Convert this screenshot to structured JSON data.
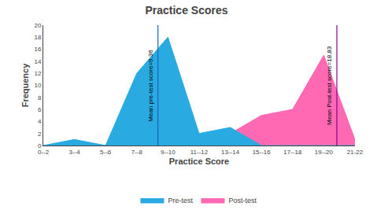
{
  "chart_data": {
    "type": "area",
    "title": "Practice Scores",
    "x_label": "Practice Score",
    "y_label": "Frequency",
    "categories": [
      "0--2",
      "3--4",
      "5--6",
      "7--8",
      "9--10",
      "11--12",
      "13--14",
      "15--16",
      "17--18",
      "19--20",
      "21-22"
    ],
    "series": [
      {
        "name": "Pre-test",
        "color": "#29ABE2",
        "values": [
          0,
          1,
          0,
          12,
          18,
          2,
          3,
          0,
          0,
          0,
          0
        ]
      },
      {
        "name": "Post-test",
        "color": "#FF69B4",
        "values": [
          0,
          0,
          0,
          0,
          0,
          1,
          2,
          5,
          6,
          15,
          1
        ]
      }
    ],
    "mean_lines": [
      {
        "position": 3.68,
        "label": "Mean pre-test score=9.36",
        "color": "#1565C0"
      },
      {
        "position": 9.42,
        "label": "Mean Post-test score=18.83",
        "color": "#8B008B"
      }
    ],
    "ylim": [
      0,
      20
    ],
    "yticks": [
      0,
      2,
      4,
      6,
      8,
      10,
      12,
      14,
      16,
      18,
      20
    ],
    "grid": false
  }
}
